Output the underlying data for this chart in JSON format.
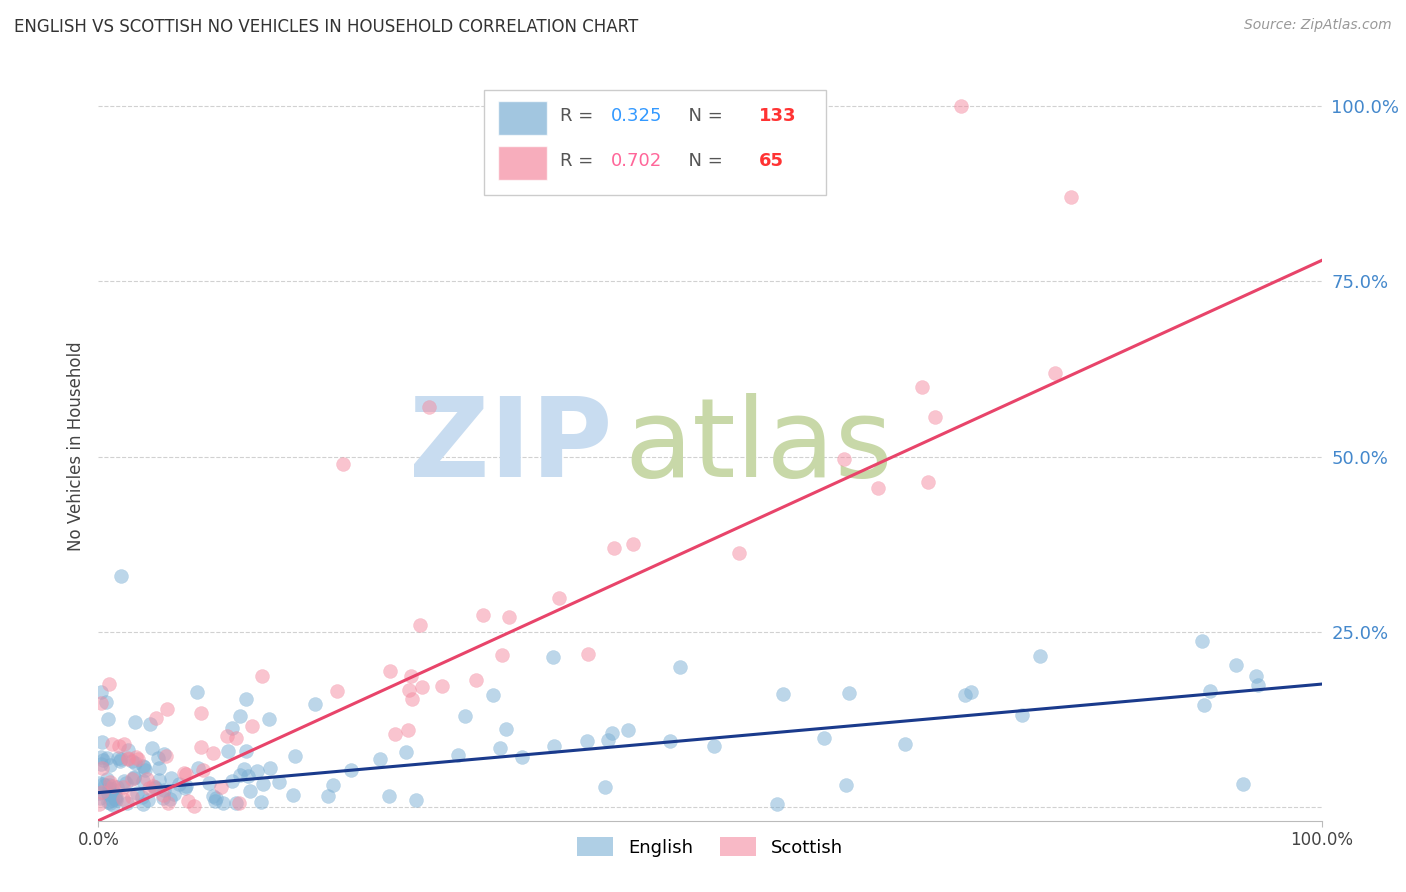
{
  "title": "ENGLISH VS SCOTTISH NO VEHICLES IN HOUSEHOLD CORRELATION CHART",
  "source": "Source: ZipAtlas.com",
  "ylabel": "No Vehicles in Household",
  "xlim": [
    0.0,
    1.0
  ],
  "ylim": [
    -0.02,
    1.05
  ],
  "yticks": [
    0.0,
    0.25,
    0.5,
    0.75,
    1.0
  ],
  "ytick_labels": [
    "",
    "25.0%",
    "50.0%",
    "75.0%",
    "100.0%"
  ],
  "xtick_labels": [
    "0.0%",
    "100.0%"
  ],
  "english_R": 0.325,
  "english_N": 133,
  "scottish_R": 0.702,
  "scottish_N": 65,
  "english_color": "#7BAFD4",
  "scottish_color": "#F48BA0",
  "english_line_color": "#1A3A8C",
  "scottish_line_color": "#E8446A",
  "watermark_zip": "ZIP",
  "watermark_atlas": "atlas",
  "watermark_color": "#D5E5F0",
  "watermark_atlas_color": "#C8D8A0",
  "legend_R_color_english": "#3399FF",
  "legend_R_color_scottish": "#FF6699",
  "legend_N_color_english": "#FF3333",
  "legend_N_color_scottish": "#FF3333",
  "ytick_color": "#4488CC",
  "english_trend_x": [
    0.0,
    1.0
  ],
  "english_trend_y": [
    0.02,
    0.175
  ],
  "scottish_trend_x": [
    0.0,
    1.0
  ],
  "scottish_trend_y": [
    -0.02,
    0.78
  ]
}
